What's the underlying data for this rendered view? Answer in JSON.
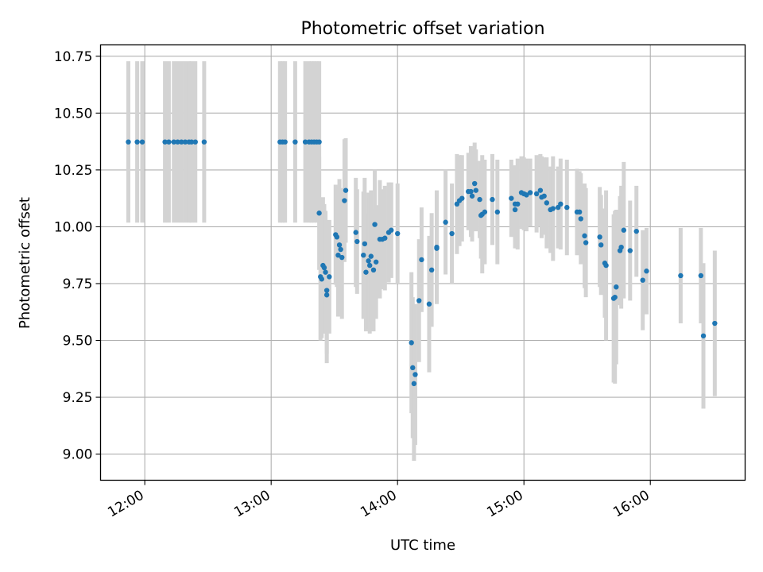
{
  "chart_data": {
    "type": "scatter",
    "title": "Photometric offset variation",
    "xlabel": "UTC time",
    "ylabel": "Photometric offset",
    "x_unit": "hours UTC",
    "xlim": [
      11.65,
      16.75
    ],
    "ylim": [
      8.885,
      10.8
    ],
    "grid": true,
    "x_ticks": [
      {
        "value": 12,
        "label": "12:00"
      },
      {
        "value": 13,
        "label": "13:00"
      },
      {
        "value": 14,
        "label": "14:00"
      },
      {
        "value": 15,
        "label": "15:00"
      },
      {
        "value": 16,
        "label": "16:00"
      }
    ],
    "y_ticks": [
      {
        "value": 9.0,
        "label": "9.00"
      },
      {
        "value": 9.25,
        "label": "9.25"
      },
      {
        "value": 9.5,
        "label": "9.50"
      },
      {
        "value": 9.75,
        "label": "9.75"
      },
      {
        "value": 10.0,
        "label": "10.00"
      },
      {
        "value": 10.25,
        "label": "10.25"
      },
      {
        "value": 10.5,
        "label": "10.50"
      },
      {
        "value": 10.75,
        "label": "10.75"
      }
    ],
    "point_color": "#1f77b4",
    "errorbar_color": "#d3d3d3",
    "points": [
      [
        11.87,
        10.373,
        0.355
      ],
      [
        11.94,
        10.373,
        0.355
      ],
      [
        11.98,
        10.373,
        0.355
      ],
      [
        12.16,
        10.373,
        0.355
      ],
      [
        12.19,
        10.373,
        0.355
      ],
      [
        12.23,
        10.373,
        0.355
      ],
      [
        12.26,
        10.373,
        0.355
      ],
      [
        12.29,
        10.373,
        0.355
      ],
      [
        12.32,
        10.373,
        0.355
      ],
      [
        12.35,
        10.373,
        0.355
      ],
      [
        12.37,
        10.373,
        0.355
      ],
      [
        12.4,
        10.373,
        0.355
      ],
      [
        12.47,
        10.373,
        0.355
      ],
      [
        13.07,
        10.373,
        0.355
      ],
      [
        13.09,
        10.373,
        0.355
      ],
      [
        13.11,
        10.373,
        0.355
      ],
      [
        13.19,
        10.373,
        0.355
      ],
      [
        13.27,
        10.373,
        0.355
      ],
      [
        13.3,
        10.373,
        0.355
      ],
      [
        13.32,
        10.373,
        0.355
      ],
      [
        13.34,
        10.373,
        0.355
      ],
      [
        13.36,
        10.373,
        0.355
      ],
      [
        13.38,
        10.373,
        0.355
      ],
      [
        13.38,
        10.06,
        0.25
      ],
      [
        13.39,
        9.78,
        0.28
      ],
      [
        13.4,
        9.77,
        0.26
      ],
      [
        13.41,
        9.83,
        0.3
      ],
      [
        13.42,
        9.82,
        0.28
      ],
      [
        13.43,
        9.8,
        0.27
      ],
      [
        13.44,
        9.72,
        0.28
      ],
      [
        13.44,
        9.7,
        0.3
      ],
      [
        13.46,
        9.78,
        0.25
      ],
      [
        13.51,
        9.965,
        0.22
      ],
      [
        13.52,
        9.955,
        0.22
      ],
      [
        13.53,
        9.875,
        0.27
      ],
      [
        13.54,
        9.92,
        0.29
      ],
      [
        13.55,
        9.9,
        0.27
      ],
      [
        13.56,
        9.865,
        0.27
      ],
      [
        13.58,
        10.115,
        0.27
      ],
      [
        13.59,
        10.16,
        0.23
      ],
      [
        13.67,
        9.975,
        0.24
      ],
      [
        13.68,
        9.935,
        0.23
      ],
      [
        13.73,
        9.875,
        0.28
      ],
      [
        13.74,
        9.925,
        0.29
      ],
      [
        13.75,
        9.8,
        0.26
      ],
      [
        13.77,
        9.85,
        0.3
      ],
      [
        13.78,
        9.83,
        0.3
      ],
      [
        13.79,
        9.87,
        0.29
      ],
      [
        13.81,
        9.81,
        0.27
      ],
      [
        13.82,
        10.01,
        0.24
      ],
      [
        13.83,
        9.845,
        0.25
      ],
      [
        13.86,
        9.945,
        0.26
      ],
      [
        13.88,
        9.945,
        0.22
      ],
      [
        13.9,
        9.95,
        0.23
      ],
      [
        13.93,
        9.975,
        0.22
      ],
      [
        13.95,
        9.985,
        0.21
      ],
      [
        14.0,
        9.97,
        0.22
      ],
      [
        14.11,
        9.49,
        0.31
      ],
      [
        14.12,
        9.38,
        0.31
      ],
      [
        14.13,
        9.31,
        0.34
      ],
      [
        14.14,
        9.35,
        0.31
      ],
      [
        14.17,
        9.675,
        0.27
      ],
      [
        14.19,
        9.855,
        0.23
      ],
      [
        14.25,
        9.66,
        0.3
      ],
      [
        14.27,
        9.81,
        0.25
      ],
      [
        14.31,
        9.905,
        0.24
      ],
      [
        14.31,
        9.91,
        0.25
      ],
      [
        14.38,
        10.02,
        0.23
      ],
      [
        14.43,
        9.97,
        0.22
      ],
      [
        14.47,
        10.1,
        0.22
      ],
      [
        14.49,
        10.115,
        0.2
      ],
      [
        14.51,
        10.125,
        0.19
      ],
      [
        14.56,
        10.155,
        0.17
      ],
      [
        14.58,
        10.155,
        0.2
      ],
      [
        14.59,
        10.135,
        0.2
      ],
      [
        14.61,
        10.19,
        0.18
      ],
      [
        14.62,
        10.16,
        0.18
      ],
      [
        14.65,
        10.12,
        0.17
      ],
      [
        14.66,
        10.05,
        0.19
      ],
      [
        14.67,
        10.055,
        0.26
      ],
      [
        14.69,
        10.065,
        0.23
      ],
      [
        14.75,
        10.12,
        0.2
      ],
      [
        14.79,
        10.065,
        0.23
      ],
      [
        14.9,
        10.125,
        0.17
      ],
      [
        14.93,
        10.1,
        0.17
      ],
      [
        14.95,
        10.1,
        0.2
      ],
      [
        14.93,
        10.075,
        0.17
      ],
      [
        14.98,
        10.15,
        0.16
      ],
      [
        15.0,
        10.145,
        0.16
      ],
      [
        15.02,
        10.14,
        0.16
      ],
      [
        15.05,
        10.15,
        0.15
      ],
      [
        15.1,
        10.145,
        0.17
      ],
      [
        15.13,
        10.16,
        0.16
      ],
      [
        15.14,
        10.13,
        0.18
      ],
      [
        15.16,
        10.135,
        0.17
      ],
      [
        15.18,
        10.105,
        0.2
      ],
      [
        15.21,
        10.075,
        0.19
      ],
      [
        15.23,
        10.08,
        0.23
      ],
      [
        15.27,
        10.085,
        0.18
      ],
      [
        15.29,
        10.1,
        0.2
      ],
      [
        15.34,
        10.085,
        0.21
      ],
      [
        15.42,
        10.065,
        0.19
      ],
      [
        15.44,
        10.065,
        0.18
      ],
      [
        15.45,
        10.035,
        0.2
      ],
      [
        15.48,
        9.96,
        0.23
      ],
      [
        15.49,
        9.93,
        0.24
      ],
      [
        15.6,
        9.955,
        0.22
      ],
      [
        15.61,
        9.92,
        0.22
      ],
      [
        15.64,
        9.84,
        0.24
      ],
      [
        15.65,
        9.83,
        0.33
      ],
      [
        15.71,
        9.685,
        0.37
      ],
      [
        15.72,
        9.69,
        0.38
      ],
      [
        15.73,
        9.735,
        0.34
      ],
      [
        15.76,
        9.895,
        0.24
      ],
      [
        15.77,
        9.91,
        0.27
      ],
      [
        15.79,
        9.985,
        0.3
      ],
      [
        15.84,
        9.895,
        0.22
      ],
      [
        15.89,
        9.98,
        0.2
      ],
      [
        15.94,
        9.765,
        0.22
      ],
      [
        15.97,
        9.805,
        0.19
      ],
      [
        16.24,
        9.785,
        0.21
      ],
      [
        16.4,
        9.785,
        0.21
      ],
      [
        16.42,
        9.52,
        0.32
      ],
      [
        16.51,
        9.575,
        0.32
      ]
    ]
  }
}
